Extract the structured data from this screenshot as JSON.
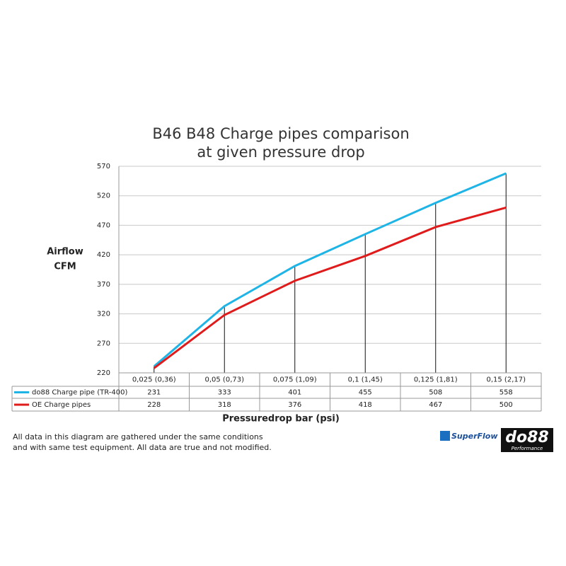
{
  "chart_data": {
    "type": "line",
    "title": [
      "B46 B48 Charge pipes comparison",
      "at given pressure drop"
    ],
    "y_label": [
      "Airflow",
      "CFM"
    ],
    "x_label": "Pressuredrop bar (psi)",
    "categories": [
      "0,025 (0,36)",
      "0,05 (0,73)",
      "0,075 (1,09)",
      "0,1 (1,45)",
      "0,125 (1,81)",
      "0,15 (2,17)"
    ],
    "series": [
      {
        "name": "do88 Charge pipe (TR-400)",
        "color": "#1eb4e6",
        "values": [
          231,
          333,
          401,
          455,
          508,
          558
        ]
      },
      {
        "name": "OE Charge pipes",
        "color": "#e01b1b",
        "values": [
          228,
          318,
          376,
          418,
          467,
          500
        ]
      }
    ],
    "ylim": [
      220,
      570
    ],
    "yticks": [
      220,
      270,
      320,
      370,
      420,
      470,
      520,
      570
    ],
    "grid": true,
    "footnote": [
      "All data in this diagram are gathered under the same conditions",
      "and with same test equipment. All data are true and not modified."
    ],
    "logos": [
      "SuperFlow",
      "do88",
      "Performance"
    ]
  }
}
